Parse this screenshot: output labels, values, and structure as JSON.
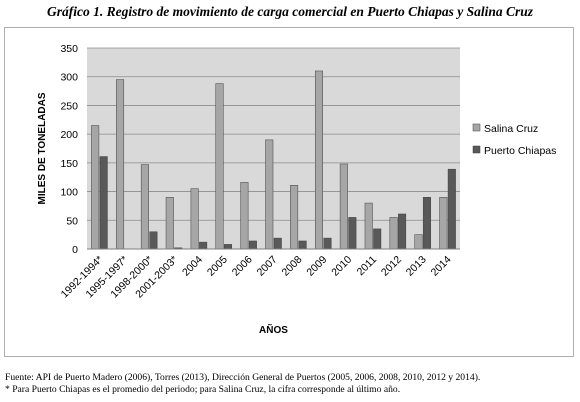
{
  "title": "Gráfico 1. Registro de movimiento de carga comercial en Puerto Chiapas y Salina Cruz",
  "footer": {
    "source": "Fuente: API de Puerto Madero (2006), Torres (2013), Dirección General de Puertos (2005, 2006, 2008, 2010, 2012 y 2014).",
    "note": "* Para Puerto Chiapas es el promedio del periodo; para Salina Cruz, la cifra corresponde al último año."
  },
  "colors": {
    "plot_background": "#d9d9d9",
    "salina_cruz": "#a6a6a6",
    "puerto_chiapas": "#595959",
    "gridline": "#8c8c8c"
  },
  "chart_data": {
    "type": "bar",
    "xlabel": "AÑOS",
    "ylabel": "MILES DE TONELADAS",
    "ylim": [
      0,
      350
    ],
    "yticks": [
      0,
      50,
      100,
      150,
      200,
      250,
      300,
      350
    ],
    "grid": true,
    "legend_position": "right",
    "categories": [
      "1992-1994*",
      "1995-1997*",
      "1998-2000*",
      "2001-2003*",
      "2004",
      "2005",
      "2006",
      "2007",
      "2008",
      "2009",
      "2010",
      "2011",
      "2012",
      "2013",
      "2014"
    ],
    "series": [
      {
        "name": "Salina Cruz",
        "values": [
          215,
          295,
          147,
          90,
          105,
          288,
          116,
          190,
          111,
          310,
          148,
          80,
          55,
          25,
          90
        ]
      },
      {
        "name": "Puerto Chiapas",
        "values": [
          161,
          0,
          30,
          2,
          12,
          8,
          14,
          19,
          14,
          19,
          55,
          35,
          61,
          90,
          139
        ]
      }
    ]
  }
}
